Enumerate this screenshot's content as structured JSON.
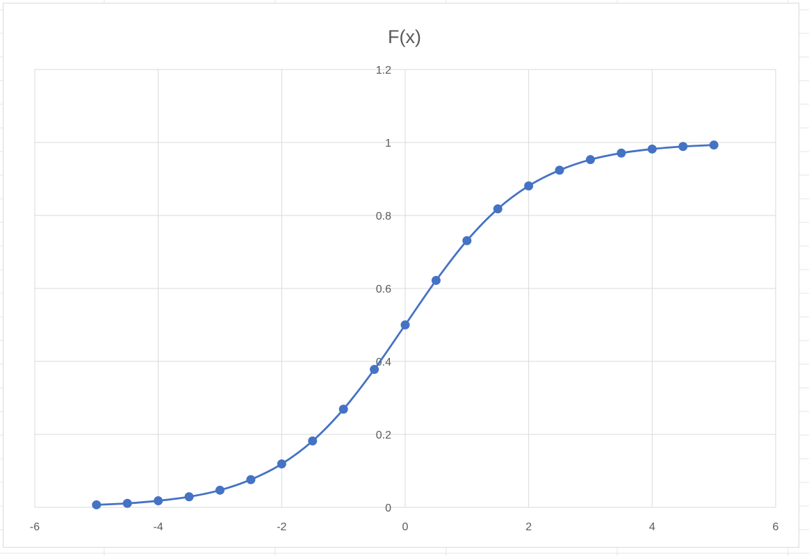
{
  "chart_data": {
    "type": "scatter",
    "title": "F(x)",
    "xlabel": "",
    "ylabel": "",
    "xlim": [
      -6,
      6
    ],
    "ylim": [
      0,
      1.2
    ],
    "x_ticks": [
      "-6",
      "-4",
      "-2",
      "0",
      "2",
      "4",
      "6"
    ],
    "y_ticks": [
      "0",
      "0.2",
      "0.4",
      "0.6",
      "0.8",
      "1",
      "1.2"
    ],
    "grid": true,
    "legend": "none",
    "smooth": true,
    "series": [
      {
        "color": "#4472c4",
        "x": [
          -5,
          -4.5,
          -4,
          -3.5,
          -3,
          -2.5,
          -2,
          -1.5,
          -1,
          -0.5,
          0,
          0.5,
          1,
          1.5,
          2,
          2.5,
          3,
          3.5,
          4,
          4.5,
          5
        ],
        "y": [
          0.007,
          0.011,
          0.018,
          0.029,
          0.047,
          0.076,
          0.119,
          0.182,
          0.269,
          0.378,
          0.5,
          0.622,
          0.731,
          0.818,
          0.881,
          0.924,
          0.953,
          0.971,
          0.982,
          0.989,
          0.993
        ]
      }
    ]
  }
}
